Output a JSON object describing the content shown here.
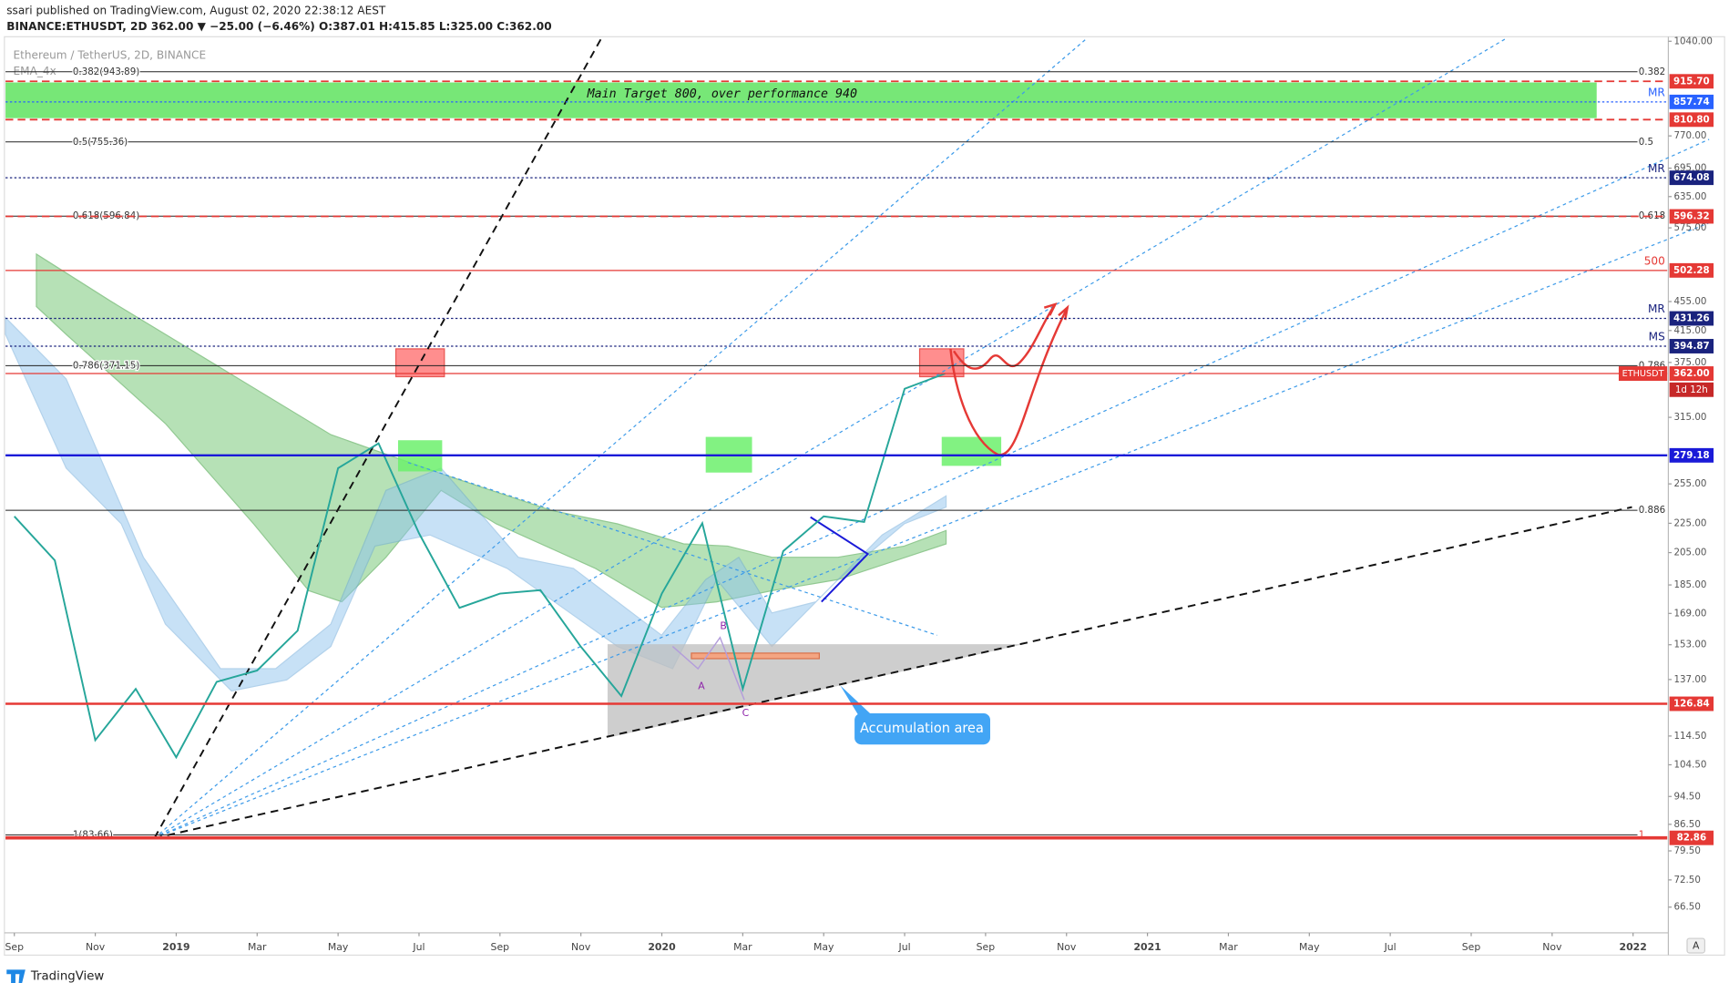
{
  "header": {
    "publisher": "ssari published on TradingView.com, August 02, 2020 22:38:12 AEST",
    "symbol_line": "BINANCE:ETHUSDT, 2D 362.00 ▼ −25.00 (−6.46%) O:387.01 H:415.85 L:325.00 C:362.00"
  },
  "footer": {
    "logo": "TradingView"
  },
  "chart_data": {
    "type": "line",
    "title": "Ethereum / TetherUS, 2D, BINANCE",
    "indicator": "EMA_4x",
    "log_scale": true,
    "x": [
      "2018-09",
      "2018-10",
      "2018-11",
      "2018-12",
      "2019-01",
      "2019-02",
      "2019-03",
      "2019-04",
      "2019-05",
      "2019-06",
      "2019-07",
      "2019-08",
      "2019-09",
      "2019-10",
      "2019-11",
      "2019-12",
      "2020-01",
      "2020-02",
      "2020-03",
      "2020-04",
      "2020-05",
      "2020-06",
      "2020-07",
      "2020-08"
    ],
    "series": [
      {
        "name": "ETHUSDT",
        "color": "#26a69a",
        "values": [
          230,
          200,
          113,
          133,
          107,
          136,
          141,
          160,
          268,
          290,
          218,
          172,
          180,
          182,
          152,
          130,
          180,
          225,
          133,
          206,
          230,
          226,
          345,
          362
        ]
      }
    ],
    "countdown": "1d 12h",
    "xlim": [
      "2018-09",
      "2022-01"
    ],
    "ylim": [
      61.5,
      1040
    ],
    "xticks": [
      {
        "value": "2018-09",
        "label": "Sep"
      },
      {
        "value": "2018-11",
        "label": "Nov"
      },
      {
        "value": "2019-01",
        "label": "2019"
      },
      {
        "value": "2019-03",
        "label": "Mar"
      },
      {
        "value": "2019-05",
        "label": "May"
      },
      {
        "value": "2019-07",
        "label": "Jul"
      },
      {
        "value": "2019-09",
        "label": "Sep"
      },
      {
        "value": "2019-11",
        "label": "Nov"
      },
      {
        "value": "2020-01",
        "label": "2020"
      },
      {
        "value": "2020-03",
        "label": "Mar"
      },
      {
        "value": "2020-05",
        "label": "May"
      },
      {
        "value": "2020-07",
        "label": "Jul"
      },
      {
        "value": "2020-09",
        "label": "Sep"
      },
      {
        "value": "2020-11",
        "label": "Nov"
      },
      {
        "value": "2021-01",
        "label": "2021"
      },
      {
        "value": "2021-03",
        "label": "Mar"
      },
      {
        "value": "2021-05",
        "label": "May"
      },
      {
        "value": "2021-07",
        "label": "Jul"
      },
      {
        "value": "2021-09",
        "label": "Sep"
      },
      {
        "value": "2021-11",
        "label": "Nov"
      },
      {
        "value": "2022-01",
        "label": "2022"
      }
    ],
    "yticks": [
      {
        "value": 1040,
        "label": "1040.00"
      },
      {
        "value": 770,
        "label": "770.00"
      },
      {
        "value": 695,
        "label": "695.00"
      },
      {
        "value": 635,
        "label": "635.00"
      },
      {
        "value": 575,
        "label": "575.00"
      },
      {
        "value": 455,
        "label": "455.00"
      },
      {
        "value": 415,
        "label": "415.00"
      },
      {
        "value": 375,
        "label": "375.00"
      },
      {
        "value": 315,
        "label": "315.00"
      },
      {
        "value": 255,
        "label": "255.00"
      },
      {
        "value": 225,
        "label": "225.00"
      },
      {
        "value": 205,
        "label": "205.00"
      },
      {
        "value": 185,
        "label": "185.00"
      },
      {
        "value": 169,
        "label": "169.00"
      },
      {
        "value": 153,
        "label": "153.00"
      },
      {
        "value": 137,
        "label": "137.00"
      },
      {
        "value": 114.5,
        "label": "114.50"
      },
      {
        "value": 104.5,
        "label": "104.50"
      },
      {
        "value": 94.5,
        "label": "94.50"
      },
      {
        "value": 86.5,
        "label": "86.50"
      },
      {
        "value": 79.5,
        "label": "79.50"
      },
      {
        "value": 72.5,
        "label": "72.50"
      },
      {
        "value": 66.5,
        "label": "66.50"
      }
    ],
    "levels": [
      {
        "value": 915.7,
        "label": "915.70",
        "color": "#e53935",
        "style": "dashed",
        "width": 1.5
      },
      {
        "value": 857.74,
        "label": "857.74",
        "color": "#2962ff",
        "style": "dotted",
        "width": 1,
        "tag": "MR"
      },
      {
        "value": 810.8,
        "label": "810.80",
        "color": "#e53935",
        "style": "dashed",
        "width": 1.5
      },
      {
        "value": 674.08,
        "label": "674.08",
        "color": "#1a237e",
        "style": "dotted",
        "width": 1,
        "tag": "MR"
      },
      {
        "value": 596.32,
        "label": "596.32",
        "color": "#e53935",
        "style": "dashed",
        "width": 1.5
      },
      {
        "value": 502.28,
        "label": "502.28",
        "color": "#e53935",
        "style": "solid",
        "width": 1,
        "tag": "500"
      },
      {
        "value": 431.26,
        "label": "431.26",
        "color": "#1a237e",
        "style": "dotted",
        "width": 1,
        "tag": "MR"
      },
      {
        "value": 394.87,
        "label": "394.87",
        "color": "#1a237e",
        "style": "dotted",
        "width": 1,
        "tag": "MS"
      },
      {
        "value": 362,
        "label": "362.00",
        "color": "#e53935",
        "style": "solid",
        "width": 1
      },
      {
        "value": 279.18,
        "label": "279.18",
        "color": "#1a1ad8",
        "style": "solid",
        "width": 2
      },
      {
        "value": 126.84,
        "label": "126.84",
        "color": "#e53935",
        "style": "solid",
        "width": 2
      },
      {
        "value": 82.86,
        "label": "82.86",
        "color": "#e53935",
        "style": "solid",
        "width": 3
      }
    ],
    "fib": [
      {
        "label": "0.382(943.89)",
        "value": 943.89,
        "right_label": "0.382"
      },
      {
        "label": "0.5(755.36)",
        "value": 755.36,
        "right_label": "0.5"
      },
      {
        "label": "0.618(596.84)",
        "value": 596.84,
        "right_label": "0.618"
      },
      {
        "label": "0.786(371.15)",
        "value": 371.15,
        "right_label": "0.786"
      },
      {
        "value": 234.5,
        "right_label": "0.886"
      },
      {
        "label": "1(83.66)",
        "value": 83.66,
        "right_label": "1"
      }
    ],
    "annotations": {
      "target": "Main Target 800, over performance 940",
      "accumulation": "Accumulation area",
      "wave_a": "A",
      "wave_b": "B",
      "wave_c": "C",
      "auto_button": "A"
    }
  }
}
